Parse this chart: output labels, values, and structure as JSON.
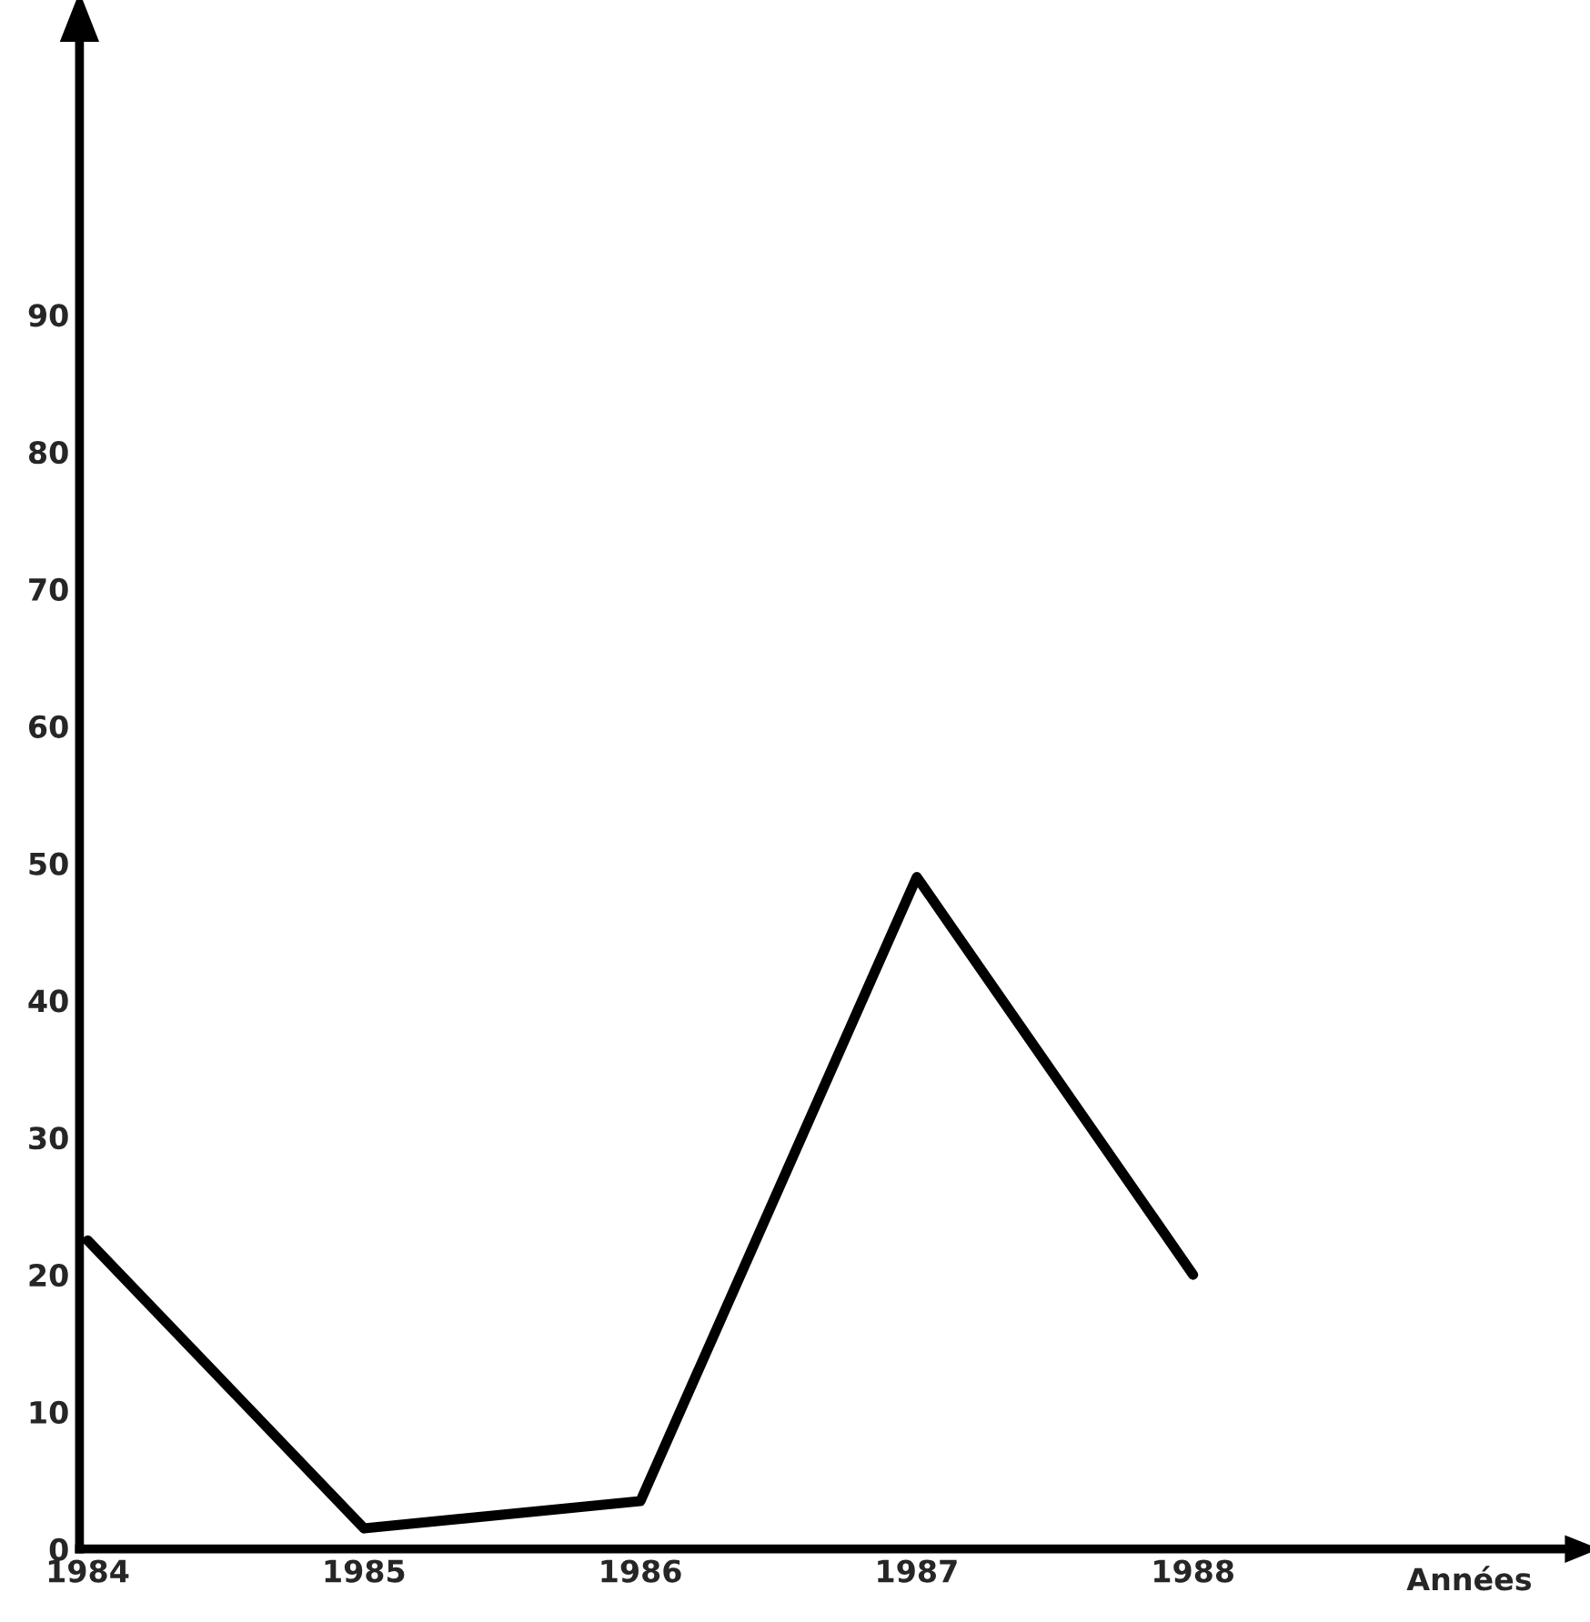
{
  "chart_data": {
    "type": "line",
    "xlabel": "Années",
    "categories": [
      "1984",
      "1985",
      "1986",
      "1987",
      "1988"
    ],
    "series": [
      {
        "color": "#000000",
        "values": [
          22.5,
          1.5,
          3.5,
          49,
          20
        ]
      }
    ],
    "ylim": [
      0,
      110
    ],
    "yticks": [
      0,
      10,
      20,
      30,
      40,
      50,
      60,
      70,
      80,
      90
    ],
    "grid": false,
    "legend": false,
    "marker": "none",
    "line_style": "solid"
  }
}
